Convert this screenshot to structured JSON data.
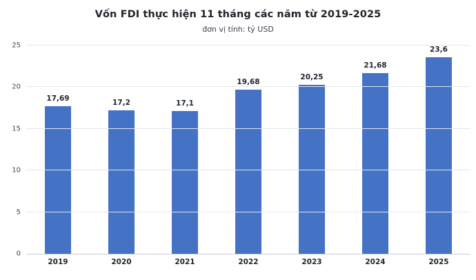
{
  "chart_data": {
    "type": "bar",
    "title": "Vốn FDI thực hiện 11 tháng các năm từ 2019-2025",
    "subtitle": "đơn vị tính: tỷ USD",
    "categories": [
      "2019",
      "2020",
      "2021",
      "2022",
      "2023",
      "2024",
      "2025"
    ],
    "values": [
      17.69,
      17.2,
      17.1,
      19.68,
      20.25,
      21.68,
      23.6
    ],
    "value_labels": [
      "17,69",
      "17,2",
      "17,1",
      "19,68",
      "20,25",
      "21,68",
      "23,6"
    ],
    "xlabel": "",
    "ylabel": "",
    "ylim": [
      0,
      25
    ],
    "yticks": [
      0,
      5,
      10,
      15,
      20,
      25
    ],
    "bar_color": "#4472c4",
    "grid": true,
    "legend_position": "none"
  }
}
